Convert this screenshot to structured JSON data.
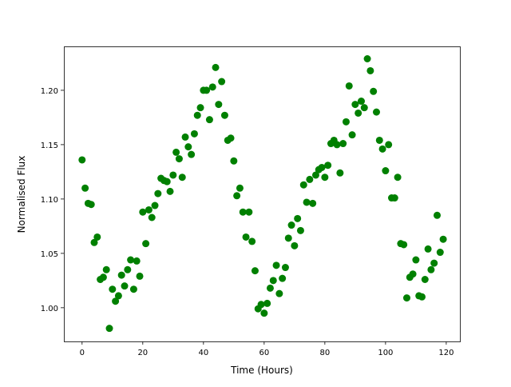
{
  "chart_data": {
    "type": "scatter",
    "title": "",
    "xlabel": "Time (Hours)",
    "ylabel": "Normalised Flux",
    "xlim": [
      -6,
      124.5
    ],
    "ylim": [
      0.969,
      1.2404
    ],
    "xticks": [
      0,
      20,
      40,
      60,
      80,
      100,
      120
    ],
    "xtick_labels": [
      "0",
      "20",
      "40",
      "60",
      "80",
      "100",
      "120"
    ],
    "yticks": [
      1.0,
      1.05,
      1.1,
      1.15,
      1.2
    ],
    "ytick_labels": [
      "1.00",
      "1.05",
      "1.10",
      "1.15",
      "1.20"
    ],
    "grid": false,
    "marker_color": "#008000",
    "x": [
      0,
      1,
      2,
      3,
      4,
      5,
      6,
      7,
      8,
      9,
      10,
      11,
      12,
      13,
      14,
      15,
      16,
      17,
      18,
      19,
      20,
      21,
      22,
      23,
      24,
      25,
      26,
      27,
      28,
      29,
      30,
      31,
      32,
      33,
      34,
      35,
      36,
      37,
      38,
      39,
      40,
      41,
      42,
      43,
      44,
      45,
      46,
      47,
      48,
      49,
      50,
      51,
      52,
      53,
      54,
      55,
      56,
      57,
      58,
      59,
      60,
      61,
      62,
      63,
      64,
      65,
      66,
      67,
      68,
      69,
      70,
      71,
      72,
      73,
      74,
      75,
      76,
      77,
      78,
      79,
      80,
      81,
      82,
      83,
      84,
      85,
      86,
      87,
      88,
      89,
      90,
      91,
      92,
      93,
      94,
      95,
      96,
      97,
      98,
      99,
      100,
      101,
      102,
      103,
      104,
      105,
      106,
      107,
      108,
      109,
      110,
      111,
      112,
      113,
      114,
      115,
      116,
      117,
      118,
      119
    ],
    "y": [
      1.136,
      1.11,
      1.096,
      1.095,
      1.06,
      1.065,
      1.026,
      1.028,
      1.035,
      0.981,
      1.017,
      1.006,
      1.011,
      1.03,
      1.02,
      1.035,
      1.044,
      1.017,
      1.043,
      1.029,
      1.088,
      1.059,
      1.09,
      1.083,
      1.094,
      1.105,
      1.119,
      1.117,
      1.116,
      1.107,
      1.122,
      1.143,
      1.137,
      1.12,
      1.157,
      1.148,
      1.141,
      1.16,
      1.177,
      1.184,
      1.2,
      1.2,
      1.173,
      1.203,
      1.221,
      1.187,
      1.208,
      1.177,
      1.154,
      1.156,
      1.135,
      1.103,
      1.11,
      1.088,
      1.065,
      1.088,
      1.061,
      1.034,
      0.999,
      1.003,
      0.995,
      1.004,
      1.018,
      1.025,
      1.039,
      1.013,
      1.027,
      1.037,
      1.064,
      1.076,
      1.057,
      1.082,
      1.071,
      1.113,
      1.097,
      1.118,
      1.096,
      1.122,
      1.127,
      1.129,
      1.12,
      1.131,
      1.151,
      1.154,
      1.15,
      1.124,
      1.151,
      1.171,
      1.204,
      1.159,
      1.187,
      1.179,
      1.19,
      1.184,
      1.229,
      1.218,
      1.199,
      1.18,
      1.154,
      1.146,
      1.126,
      1.15,
      1.101,
      1.101,
      1.12,
      1.059,
      1.058,
      1.009,
      1.028,
      1.031,
      1.044,
      1.011,
      1.01,
      1.026,
      1.054,
      1.035,
      1.041,
      1.085,
      1.051,
      1.063
    ]
  }
}
